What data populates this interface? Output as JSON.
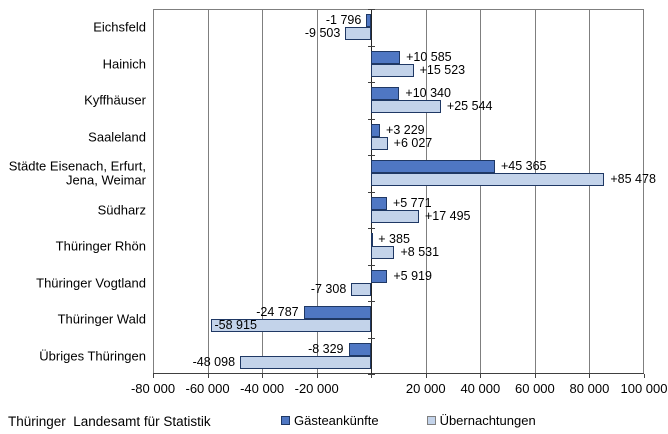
{
  "footer": {
    "source": "Thüringer  Landesamt für Statistik"
  },
  "chart_data": {
    "type": "bar",
    "orientation": "horizontal",
    "title": "",
    "xlabel": "",
    "ylabel": "",
    "grid": true,
    "legend_position": "bottom",
    "xlim": [
      -80000,
      100000
    ],
    "xticks": [
      -80000,
      -60000,
      -40000,
      -20000,
      0,
      20000,
      40000,
      60000,
      80000,
      100000
    ],
    "xtick_labels": [
      "-80 000",
      "-60 000",
      "-40 000",
      "-20 000",
      "",
      "20 000",
      "40 000",
      "60 000",
      "80 000",
      "100 000"
    ],
    "categories": [
      "Eichsfeld",
      "Hainich",
      "Kyffhäuser",
      "Saaleland",
      "Städte Eisenach, Erfurt,\nJena, Weimar",
      "Südharz",
      "Thüringer Rhön",
      "Thüringer Vogtland",
      "Thüringer Wald",
      "Übriges Thüringen"
    ],
    "series": [
      {
        "name": "Gästeankünfte",
        "color": "#4f77c3",
        "points": [
          {
            "value": -1796,
            "label": "-1 796"
          },
          {
            "value": 10585,
            "label": "+10 585"
          },
          {
            "value": 10340,
            "label": "+10 340"
          },
          {
            "value": 3229,
            "label": "+3 229"
          },
          {
            "value": 45365,
            "label": "+45 365"
          },
          {
            "value": 5771,
            "label": "+5 771"
          },
          {
            "value": 385,
            "label": "+ 385"
          },
          {
            "value": 5919,
            "label": "+5 919"
          },
          {
            "value": -24787,
            "label": "-24 787"
          },
          {
            "value": -8329,
            "label": "-8 329"
          }
        ]
      },
      {
        "name": "Übernachtungen",
        "color": "#c3d3ea",
        "points": [
          {
            "value": -9503,
            "label": "-9 503"
          },
          {
            "value": 15523,
            "label": "+15 523"
          },
          {
            "value": 25544,
            "label": "+25 544"
          },
          {
            "value": 6027,
            "label": "+6 027"
          },
          {
            "value": 85478,
            "label": "+85 478"
          },
          {
            "value": 17495,
            "label": "+17 495"
          },
          {
            "value": 8531,
            "label": "+8 531"
          },
          {
            "value": -7308,
            "label": "-7 308"
          },
          {
            "value": -58915,
            "label": "-58 915",
            "label_inside": true
          },
          {
            "value": -48098,
            "label": "-48 098"
          }
        ]
      }
    ],
    "bar_border_color": "#1f3864",
    "grid_color": "#7f7f7f",
    "axis_color": "#404040"
  }
}
